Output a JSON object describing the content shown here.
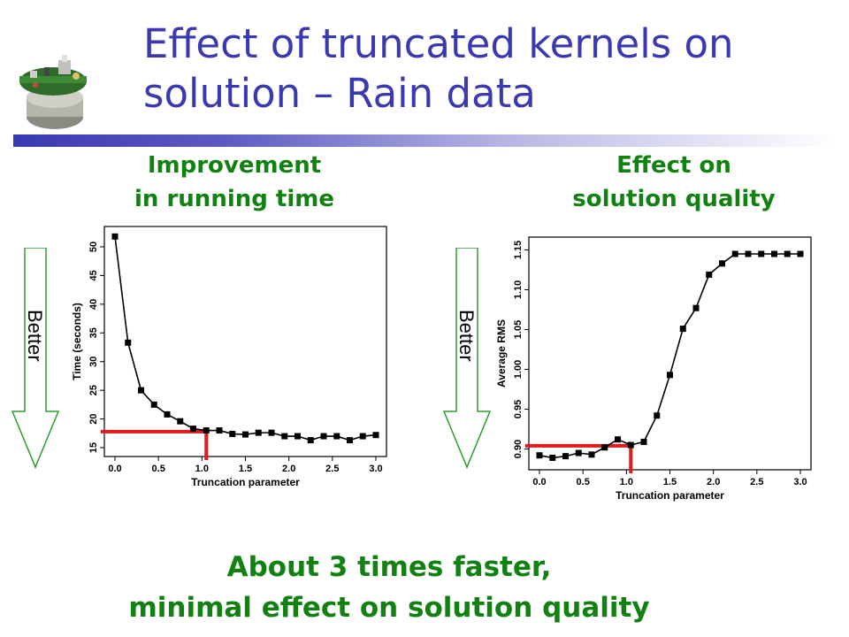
{
  "slide": {
    "title_line1": "Effect of truncated kernels on",
    "title_line2": "solution – Rain data"
  },
  "left_section": {
    "heading_line1": "Improvement",
    "heading_line2": "in running time",
    "arrow_label": "Better"
  },
  "right_section": {
    "heading_line1": "Effect on",
    "heading_line2": "solution quality",
    "arrow_label": "Better"
  },
  "conclusion": {
    "line1": "About 3 times faster,",
    "line2": "minimal effect on solution quality"
  },
  "colors": {
    "title": "#3b39b0",
    "headings": "#118211",
    "highlight": "#e31a1a",
    "series": "#000000"
  },
  "icons": [
    "sensor-device-logo",
    "down-arrow-icon"
  ],
  "chart_data": [
    {
      "type": "line",
      "xlabel": "Truncation parameter",
      "ylabel": "Time (seconds)",
      "xlim": [
        0.0,
        3.0
      ],
      "ylim": [
        15,
        52
      ],
      "xticks": [
        "0.0",
        "0.5",
        "1.0",
        "1.5",
        "2.0",
        "2.5",
        "3.0"
      ],
      "xtick_values": [
        0.0,
        0.5,
        1.0,
        1.5,
        2.0,
        2.5,
        3.0
      ],
      "yticks": [
        "15",
        "20",
        "25",
        "30",
        "35",
        "40",
        "45",
        "50"
      ],
      "ytick_values": [
        15,
        20,
        25,
        30,
        35,
        40,
        45,
        50
      ],
      "series": [
        {
          "x": [
            0.0,
            0.15,
            0.3,
            0.45,
            0.6,
            0.75,
            0.9,
            1.05,
            1.2,
            1.35,
            1.5,
            1.65,
            1.8,
            1.95,
            2.1,
            2.25,
            2.4,
            2.55,
            2.7,
            2.85,
            3.0
          ],
          "values": [
            51.8,
            33.3,
            25.0,
            22.5,
            20.8,
            19.6,
            18.3,
            18.0,
            18.0,
            17.4,
            17.3,
            17.6,
            17.6,
            17.0,
            17.0,
            16.3,
            17.0,
            17.0,
            16.3,
            17.0,
            17.2
          ]
        }
      ],
      "highlight": {
        "x": 1.05,
        "y": 17.8
      },
      "grid": false
    },
    {
      "type": "line",
      "xlabel": "Truncation parameter",
      "ylabel": "Average RMS",
      "xlim": [
        0.0,
        3.0
      ],
      "ylim": [
        0.885,
        1.155
      ],
      "xticks": [
        "0.0",
        "0.5",
        "1.0",
        "1.5",
        "2.0",
        "2.5",
        "3.0"
      ],
      "xtick_values": [
        0.0,
        0.5,
        1.0,
        1.5,
        2.0,
        2.5,
        3.0
      ],
      "yticks": [
        "0.90",
        "0.95",
        "1.00",
        "1.05",
        "1.10",
        "1.15"
      ],
      "ytick_values": [
        0.9,
        0.95,
        1.0,
        1.05,
        1.1,
        1.15
      ],
      "series": [
        {
          "x": [
            0.0,
            0.15,
            0.3,
            0.45,
            0.6,
            0.75,
            0.9,
            1.05,
            1.2,
            1.35,
            1.5,
            1.65,
            1.8,
            1.95,
            2.1,
            2.25,
            2.4,
            2.55,
            2.7,
            2.85,
            3.0
          ],
          "values": [
            0.892,
            0.889,
            0.891,
            0.895,
            0.893,
            0.902,
            0.912,
            0.905,
            0.909,
            0.942,
            0.993,
            1.051,
            1.077,
            1.119,
            1.133,
            1.145,
            1.145,
            1.145,
            1.145,
            1.145,
            1.145
          ]
        }
      ],
      "highlight": {
        "x": 1.05,
        "y": 0.904
      },
      "grid": false
    }
  ]
}
